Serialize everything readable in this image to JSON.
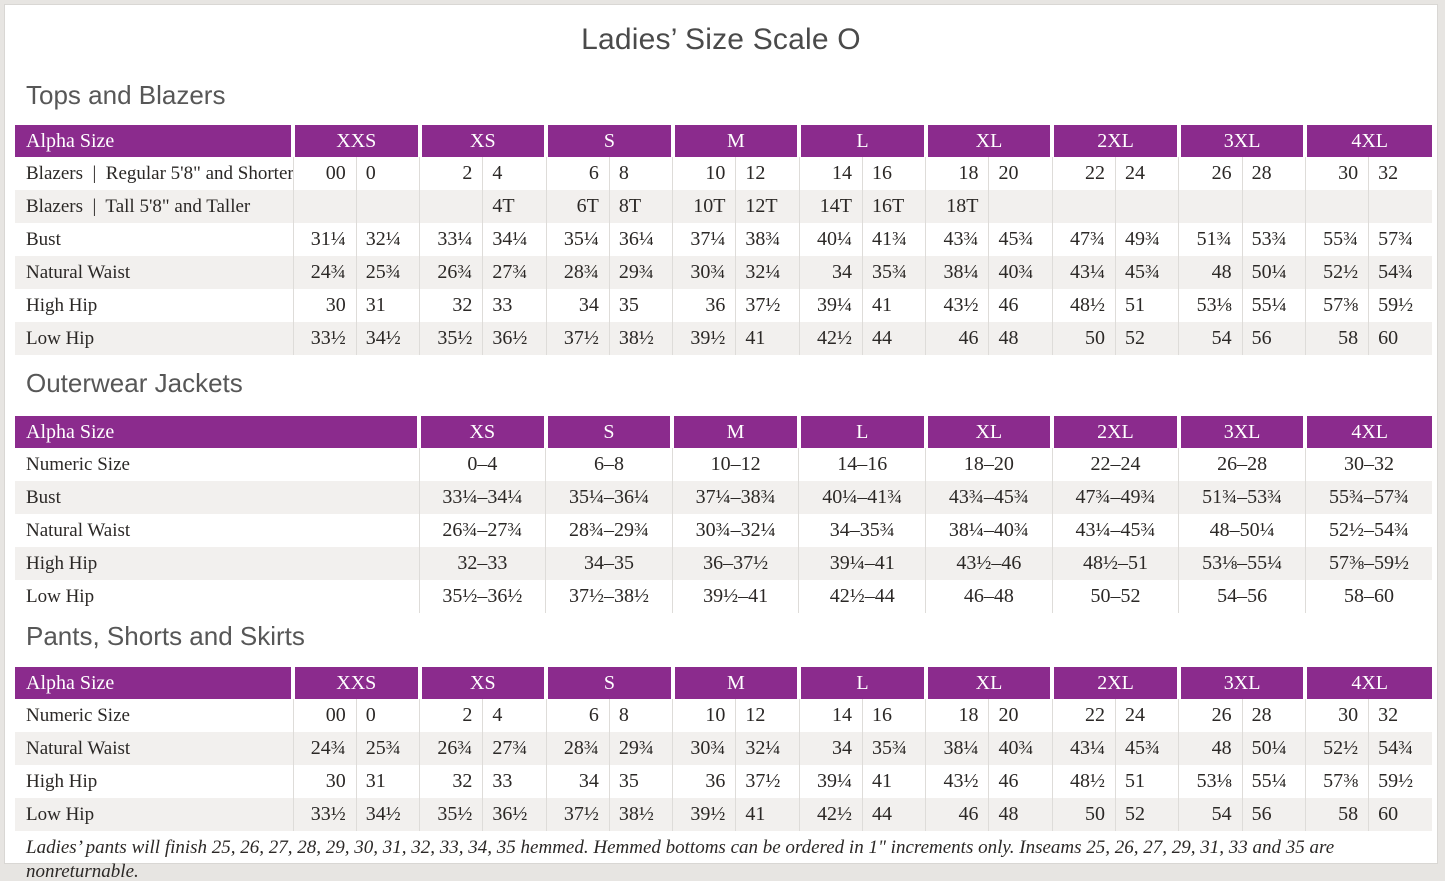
{
  "page": {
    "title": "Ladies’ Size Scale O",
    "footnote": "Ladies’ pants will finish 25, 26, 27, 28, 29, 30, 31, 32, 33, 34, 35 hemmed. Hemmed bottoms can be ordered in 1\" increments only. Inseams 25, 26, 27, 29, 31, 33 and 35 are nonreturnable."
  },
  "colors": {
    "accent_purple": "#8b2b8d",
    "stripe": "#f2f0ee",
    "divider": "#dedcd9",
    "ink": "#2b2826"
  },
  "tables": [
    {
      "id": "tops-and-blazers",
      "section_title": "Tops and Blazers",
      "type": "split",
      "header_label": "Alpha Size",
      "sizes": [
        "XXS",
        "XS",
        "S",
        "M",
        "L",
        "XL",
        "2XL",
        "3XL",
        "4XL"
      ],
      "rows": [
        {
          "label": "Blazers  |  Regular 5'8\" and Shorter",
          "pairs": [
            [
              "00",
              "0"
            ],
            [
              "2",
              "4"
            ],
            [
              "6",
              "8"
            ],
            [
              "10",
              "12"
            ],
            [
              "14",
              "16"
            ],
            [
              "18",
              "20"
            ],
            [
              "22",
              "24"
            ],
            [
              "26",
              "28"
            ],
            [
              "30",
              "32"
            ]
          ]
        },
        {
          "label": "Blazers  |  Tall 5'8\" and Taller",
          "pairs": [
            [
              "",
              ""
            ],
            [
              "",
              "4T"
            ],
            [
              "6T",
              "8T"
            ],
            [
              "10T",
              "12T"
            ],
            [
              "14T",
              "16T"
            ],
            [
              "18T",
              ""
            ],
            [
              "",
              ""
            ],
            [
              "",
              ""
            ],
            [
              "",
              ""
            ]
          ]
        },
        {
          "label": "Bust",
          "pairs": [
            [
              "31¼",
              "32¼"
            ],
            [
              "33¼",
              "34¼"
            ],
            [
              "35¼",
              "36¼"
            ],
            [
              "37¼",
              "38¾"
            ],
            [
              "40¼",
              "41¾"
            ],
            [
              "43¾",
              "45¾"
            ],
            [
              "47¾",
              "49¾"
            ],
            [
              "51¾",
              "53¾"
            ],
            [
              "55¾",
              "57¾"
            ]
          ]
        },
        {
          "label": "Natural Waist",
          "pairs": [
            [
              "24¾",
              "25¾"
            ],
            [
              "26¾",
              "27¾"
            ],
            [
              "28¾",
              "29¾"
            ],
            [
              "30¾",
              "32¼"
            ],
            [
              "34",
              "35¾"
            ],
            [
              "38¼",
              "40¾"
            ],
            [
              "43¼",
              "45¾"
            ],
            [
              "48",
              "50¼"
            ],
            [
              "52½",
              "54¾"
            ]
          ]
        },
        {
          "label": "High Hip",
          "pairs": [
            [
              "30",
              "31"
            ],
            [
              "32",
              "33"
            ],
            [
              "34",
              "35"
            ],
            [
              "36",
              "37½"
            ],
            [
              "39¼",
              "41"
            ],
            [
              "43½",
              "46"
            ],
            [
              "48½",
              "51"
            ],
            [
              "53⅛",
              "55¼"
            ],
            [
              "57⅜",
              "59½"
            ]
          ]
        },
        {
          "label": "Low Hip",
          "pairs": [
            [
              "33½",
              "34½"
            ],
            [
              "35½",
              "36½"
            ],
            [
              "37½",
              "38½"
            ],
            [
              "39½",
              "41"
            ],
            [
              "42½",
              "44"
            ],
            [
              "46",
              "48"
            ],
            [
              "50",
              "52"
            ],
            [
              "54",
              "56"
            ],
            [
              "58",
              "60"
            ]
          ]
        }
      ]
    },
    {
      "id": "outerwear-jackets",
      "section_title": "Outerwear Jackets",
      "type": "range",
      "header_label": "Alpha Size",
      "sizes": [
        "XS",
        "S",
        "M",
        "L",
        "XL",
        "2XL",
        "3XL",
        "4XL"
      ],
      "rows": [
        {
          "label": "Numeric Size",
          "values": [
            "0–4",
            "6–8",
            "10–12",
            "14–16",
            "18–20",
            "22–24",
            "26–28",
            "30–32"
          ]
        },
        {
          "label": "Bust",
          "values": [
            "33¼–34¼",
            "35¼–36¼",
            "37¼–38¾",
            "40¼–41¾",
            "43¾–45¾",
            "47¾–49¾",
            "51¾–53¾",
            "55¾–57¾"
          ]
        },
        {
          "label": "Natural Waist",
          "values": [
            "26¾–27¾",
            "28¾–29¾",
            "30¾–32¼",
            "34–35¾",
            "38¼–40¾",
            "43¼–45¾",
            "48–50¼",
            "52½–54¾"
          ]
        },
        {
          "label": "High Hip",
          "values": [
            "32–33",
            "34–35",
            "36–37½",
            "39¼–41",
            "43½–46",
            "48½–51",
            "53⅛–55¼",
            "57⅜–59½"
          ]
        },
        {
          "label": "Low Hip",
          "values": [
            "35½–36½",
            "37½–38½",
            "39½–41",
            "42½–44",
            "46–48",
            "50–52",
            "54–56",
            "58–60"
          ]
        }
      ]
    },
    {
      "id": "pants-shorts-and-skirts",
      "section_title": "Pants, Shorts and Skirts",
      "type": "split",
      "header_label": "Alpha Size",
      "sizes": [
        "XXS",
        "XS",
        "S",
        "M",
        "L",
        "XL",
        "2XL",
        "3XL",
        "4XL"
      ],
      "rows": [
        {
          "label": "Numeric Size",
          "pairs": [
            [
              "00",
              "0"
            ],
            [
              "2",
              "4"
            ],
            [
              "6",
              "8"
            ],
            [
              "10",
              "12"
            ],
            [
              "14",
              "16"
            ],
            [
              "18",
              "20"
            ],
            [
              "22",
              "24"
            ],
            [
              "26",
              "28"
            ],
            [
              "30",
              "32"
            ]
          ]
        },
        {
          "label": "Natural Waist",
          "pairs": [
            [
              "24¾",
              "25¾"
            ],
            [
              "26¾",
              "27¾"
            ],
            [
              "28¾",
              "29¾"
            ],
            [
              "30¾",
              "32¼"
            ],
            [
              "34",
              "35¾"
            ],
            [
              "38¼",
              "40¾"
            ],
            [
              "43¼",
              "45¾"
            ],
            [
              "48",
              "50¼"
            ],
            [
              "52½",
              "54¾"
            ]
          ]
        },
        {
          "label": "High Hip",
          "pairs": [
            [
              "30",
              "31"
            ],
            [
              "32",
              "33"
            ],
            [
              "34",
              "35"
            ],
            [
              "36",
              "37½"
            ],
            [
              "39¼",
              "41"
            ],
            [
              "43½",
              "46"
            ],
            [
              "48½",
              "51"
            ],
            [
              "53⅛",
              "55¼"
            ],
            [
              "57⅜",
              "59½"
            ]
          ]
        },
        {
          "label": "Low Hip",
          "pairs": [
            [
              "33½",
              "34½"
            ],
            [
              "35½",
              "36½"
            ],
            [
              "37½",
              "38½"
            ],
            [
              "39½",
              "41"
            ],
            [
              "42½",
              "44"
            ],
            [
              "46",
              "48"
            ],
            [
              "50",
              "52"
            ],
            [
              "54",
              "56"
            ],
            [
              "58",
              "60"
            ]
          ]
        }
      ]
    }
  ]
}
